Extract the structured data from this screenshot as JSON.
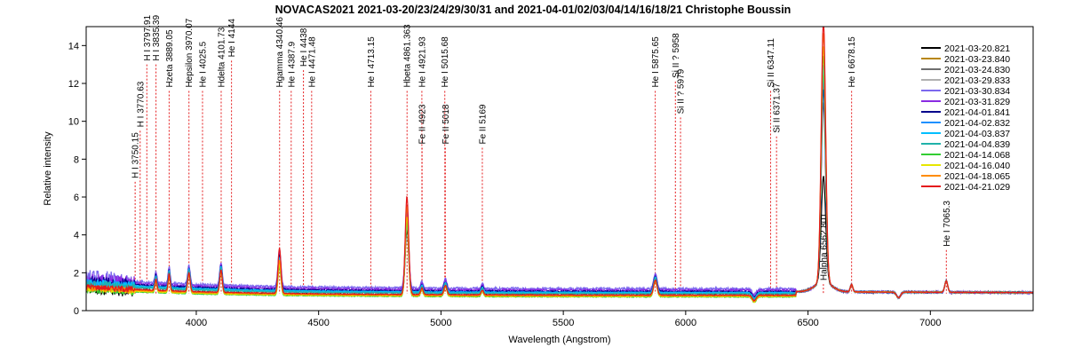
{
  "chart_data": {
    "type": "line",
    "title": "NOVACAS2021   2021-03-20/23/24/29/30/31 and 2021-04-01/02/03/04/14/16/18/21   Christophe Boussin",
    "xlabel": "Wavelength (Angstrom)",
    "ylabel": "Relative intensity",
    "xlim": [
      3550,
      7420
    ],
    "ylim": [
      0,
      15
    ],
    "xticks": [
      4000,
      4500,
      5000,
      5500,
      6000,
      6500,
      7000
    ],
    "yticks": [
      0,
      2,
      4,
      6,
      8,
      10,
      12,
      14
    ],
    "grid": false,
    "legend_position": "top-right",
    "line_ids": [
      {
        "label": "H I 3750.15",
        "x": 3750.15,
        "y_top": 6.8
      },
      {
        "label": "H I 3770.63",
        "x": 3770.63,
        "y_top": 9.5
      },
      {
        "label": "H I 3797.91",
        "x": 3797.91,
        "y_top": 13.0
      },
      {
        "label": "H I 3835.39",
        "x": 3835.39,
        "y_top": 13.0
      },
      {
        "label": "Hzeta 3889.05",
        "x": 3889.05,
        "y_top": 11.6
      },
      {
        "label": "Hepsilon 3970.07",
        "x": 3970.07,
        "y_top": 11.6
      },
      {
        "label": "He I 4025.5",
        "x": 4025.5,
        "y_top": 11.6
      },
      {
        "label": "Hdelta 4101.73",
        "x": 4101.73,
        "y_top": 11.6
      },
      {
        "label": "He I 4144",
        "x": 4144,
        "y_top": 13.2
      },
      {
        "label": "Hgamma 4340.46",
        "x": 4340.46,
        "y_top": 11.6
      },
      {
        "label": "He I 4387.9",
        "x": 4387.9,
        "y_top": 11.6
      },
      {
        "label": "He I 4438",
        "x": 4438,
        "y_top": 12.7
      },
      {
        "label": "He I 4471.48",
        "x": 4471.48,
        "y_top": 11.6
      },
      {
        "label": "He I 4713.15",
        "x": 4713.15,
        "y_top": 11.6
      },
      {
        "label": "Hbeta 4861.363",
        "x": 4861.363,
        "y_top": 11.6
      },
      {
        "label": "He I 4921.93",
        "x": 4921.93,
        "y_top": 11.6
      },
      {
        "label": "Fe II 4923",
        "x": 4923,
        "y_top": 8.6
      },
      {
        "label": "He I 5015.68",
        "x": 5015.68,
        "y_top": 11.6
      },
      {
        "label": "Fe II 5018",
        "x": 5018,
        "y_top": 8.6
      },
      {
        "label": "Fe II 5169",
        "x": 5169,
        "y_top": 8.6
      },
      {
        "label": "He I 5875.65",
        "x": 5875.65,
        "y_top": 11.6
      },
      {
        "label": "Si II ? 5958",
        "x": 5958,
        "y_top": 12.1
      },
      {
        "label": "Si II ? 5979",
        "x": 5979,
        "y_top": 10.2
      },
      {
        "label": "Si II 6347.11",
        "x": 6347.11,
        "y_top": 11.6
      },
      {
        "label": "Si II 6371.37",
        "x": 6371.37,
        "y_top": 9.2
      },
      {
        "label": "Halpha 6562.801",
        "x": 6562.801,
        "y_top": 1.4
      },
      {
        "label": "He I 6678.15",
        "x": 6678.15,
        "y_top": 11.6
      },
      {
        "label": "He I 7065.3",
        "x": 7065.3,
        "y_top": 3.2
      }
    ],
    "series": [
      {
        "name": "2021-03-20.821",
        "color": "#000000",
        "scale": 0.8,
        "offset": 0.0,
        "ha": 6.6,
        "hb": 4.7,
        "hg": 3.1,
        "noise": 0.25
      },
      {
        "name": "2021-03-23.840",
        "color": "#b8860b",
        "scale": 0.95,
        "offset": 0.0,
        "ha": 11.5,
        "hb": 5.0,
        "hg": 3.3,
        "noise": 0.2
      },
      {
        "name": "2021-03-24.830",
        "color": "#6e6e6e",
        "scale": 0.9,
        "offset": 0.0,
        "ha": 10.5,
        "hb": 4.8,
        "hg": 3.2,
        "noise": 0.2
      },
      {
        "name": "2021-03-29.833",
        "color": "#b0b0b0",
        "scale": 0.92,
        "offset": 0.0,
        "ha": 11.0,
        "hb": 4.9,
        "hg": 3.3,
        "noise": 0.2
      },
      {
        "name": "2021-03-30.834",
        "color": "#7b68ee",
        "scale": 1.05,
        "offset": 0.1,
        "ha": 12.0,
        "hb": 5.4,
        "hg": 3.5,
        "noise": 0.3
      },
      {
        "name": "2021-03-31.829",
        "color": "#8a2be2",
        "scale": 1.02,
        "offset": 0.05,
        "ha": 11.8,
        "hb": 5.3,
        "hg": 3.4,
        "noise": 0.25
      },
      {
        "name": "2021-04-01.841",
        "color": "#00008b",
        "scale": 1.0,
        "offset": 0.0,
        "ha": 11.2,
        "hb": 5.1,
        "hg": 3.3,
        "noise": 0.2
      },
      {
        "name": "2021-04-02.832",
        "color": "#1e90ff",
        "scale": 0.95,
        "offset": 0.0,
        "ha": 12.5,
        "hb": 5.0,
        "hg": 3.2,
        "noise": 0.15
      },
      {
        "name": "2021-04-03.837",
        "color": "#00bfff",
        "scale": 0.95,
        "offset": 0.0,
        "ha": 12.3,
        "hb": 5.0,
        "hg": 3.2,
        "noise": 0.15
      },
      {
        "name": "2021-04-04.839",
        "color": "#20b2aa",
        "scale": 0.9,
        "offset": 0.0,
        "ha": 12.0,
        "hb": 4.9,
        "hg": 3.1,
        "noise": 0.15
      },
      {
        "name": "2021-04-14.068",
        "color": "#32cd32",
        "scale": 0.72,
        "offset": 0.0,
        "ha": 13.0,
        "hb": 5.2,
        "hg": 3.0,
        "noise": 0.1
      },
      {
        "name": "2021-04-16.040",
        "color": "#e6e600",
        "scale": 0.75,
        "offset": 0.0,
        "ha": 13.5,
        "hb": 5.4,
        "hg": 3.1,
        "noise": 0.1
      },
      {
        "name": "2021-04-18.065",
        "color": "#ff8c00",
        "scale": 0.78,
        "offset": 0.0,
        "ha": 14.2,
        "hb": 5.9,
        "hg": 3.3,
        "noise": 0.1
      },
      {
        "name": "2021-04-21.029",
        "color": "#e41a1c",
        "scale": 0.82,
        "offset": 0.0,
        "ha": 14.8,
        "hb": 6.4,
        "hg": 3.9,
        "noise": 0.1
      }
    ]
  }
}
